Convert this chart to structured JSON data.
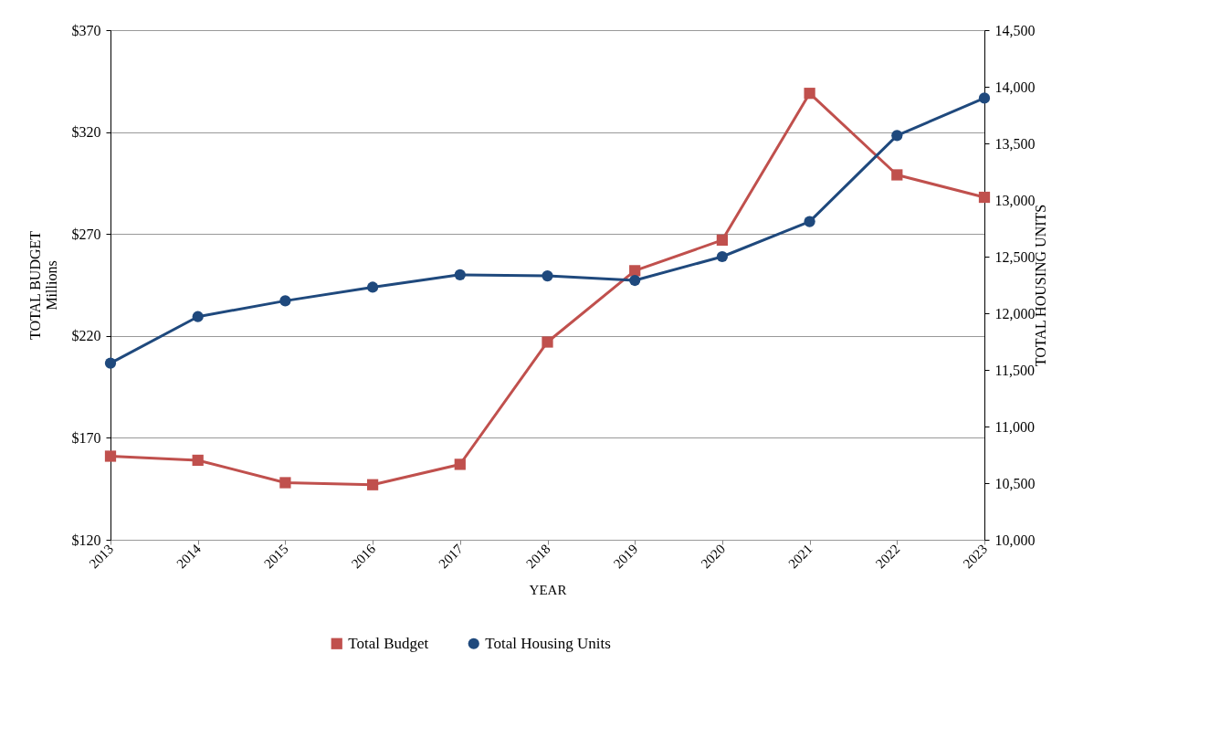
{
  "chart_data": {
    "type": "line",
    "xlabel": "YEAR",
    "ylabel": "TOTAL  BUDGET\nMillions",
    "y2label": "TOTAL HOUSING UNITS",
    "categories": [
      "2013",
      "2014",
      "2015",
      "2016",
      "2017",
      "2018",
      "2019",
      "2020",
      "2021",
      "2022",
      "2023"
    ],
    "series": [
      {
        "name": "Total Budget",
        "color": "#c0504d",
        "marker": "square",
        "values": [
          161,
          159,
          148,
          147,
          157,
          217,
          252,
          267,
          339,
          299,
          288
        ]
      },
      {
        "name": "Total Housing Units",
        "color": "#1f497d",
        "marker": "circle",
        "axis": "y2",
        "values": [
          11560,
          11970,
          12110,
          12230,
          12340,
          12330,
          12290,
          12500,
          12810,
          13570,
          13900
        ]
      }
    ],
    "ylim": [
      120,
      370
    ],
    "yticks": [
      {
        "value": 120,
        "label": "$120"
      },
      {
        "value": 170,
        "label": "$170"
      },
      {
        "value": 220,
        "label": "$220"
      },
      {
        "value": 270,
        "label": "$270"
      },
      {
        "value": 320,
        "label": "$320"
      },
      {
        "value": 370,
        "label": "$370"
      }
    ],
    "y2lim": [
      10000,
      14500
    ],
    "y2ticks": [
      {
        "value": 10000,
        "label": "10,000"
      },
      {
        "value": 10500,
        "label": "10,500"
      },
      {
        "value": 11000,
        "label": "11,000"
      },
      {
        "value": 11500,
        "label": "11,500"
      },
      {
        "value": 12000,
        "label": "12,000"
      },
      {
        "value": 12500,
        "label": "12,500"
      },
      {
        "value": 13000,
        "label": "13,000"
      },
      {
        "value": 13500,
        "label": "13,500"
      },
      {
        "value": 14000,
        "label": "14,000"
      },
      {
        "value": 14500,
        "label": "14,500"
      }
    ],
    "grid": "y",
    "legend": "bottom",
    "line_style": "solid"
  }
}
